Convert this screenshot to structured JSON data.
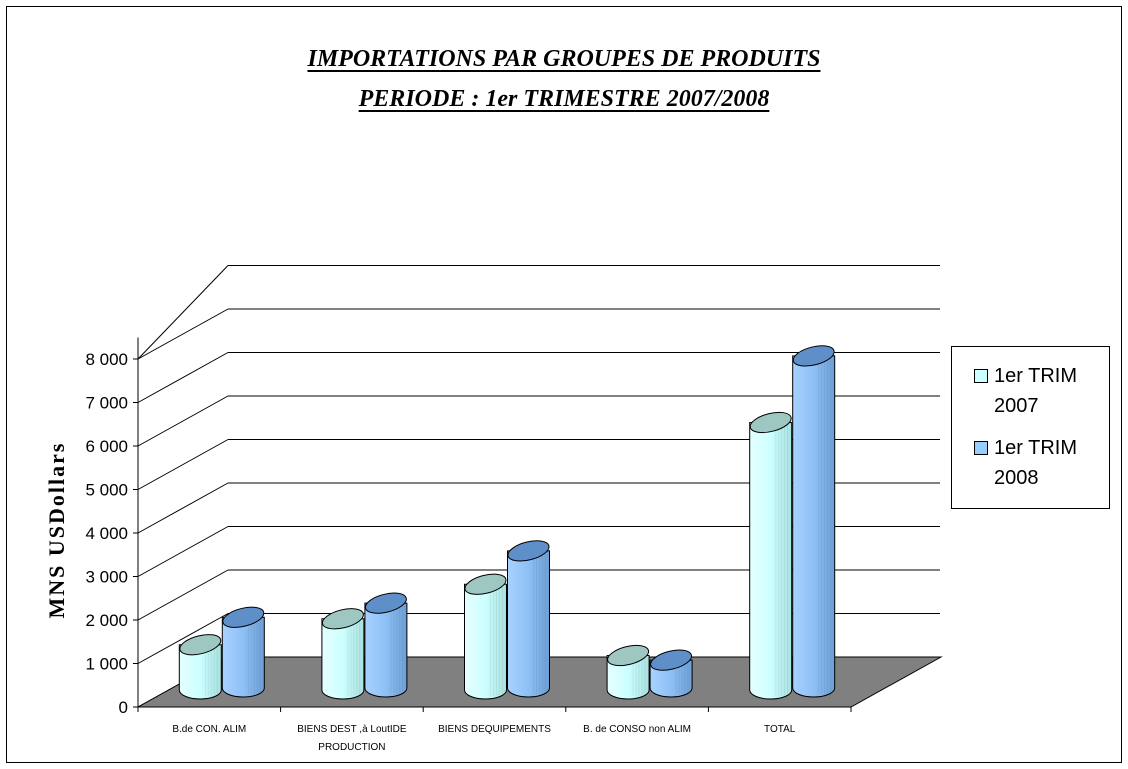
{
  "chart_data": {
    "type": "bar",
    "title": "IMPORTATIONS PAR GROUPES DE PRODUITS",
    "subtitle": "PERIODE : 1er TRIMESTRE   2007/2008",
    "ylabel": "MNS USDollars",
    "xlabel": "",
    "ylim": [
      0,
      8000
    ],
    "yticks": [
      "0",
      "1 000",
      "2 000",
      "3 000",
      "4 000",
      "5 000",
      "6 000",
      "7 000",
      "8 000"
    ],
    "categories": [
      [
        "B.de CON. ALIM"
      ],
      [
        "BIENS DEST ,à LoutIDE",
        "PRODUCTION"
      ],
      [
        "BIENS DEQUIPEMENTS"
      ],
      [
        "B. de CONSO non ALIM"
      ],
      [
        "TOTAL"
      ]
    ],
    "series": [
      {
        "name": "1er TRIM 2007",
        "values": [
          1050,
          1650,
          2450,
          800,
          6200
        ],
        "color": "#ccffff"
      },
      {
        "name": "1er TRIM 2008",
        "values": [
          1650,
          1980,
          3200,
          650,
          7750
        ],
        "color": "#99ccff"
      }
    ],
    "grid": true,
    "legend": "right"
  },
  "legend": {
    "items": [
      {
        "line1": "1er TRIM",
        "line2": "2007"
      },
      {
        "line1": "1er TRIM",
        "line2": "2008"
      }
    ]
  }
}
